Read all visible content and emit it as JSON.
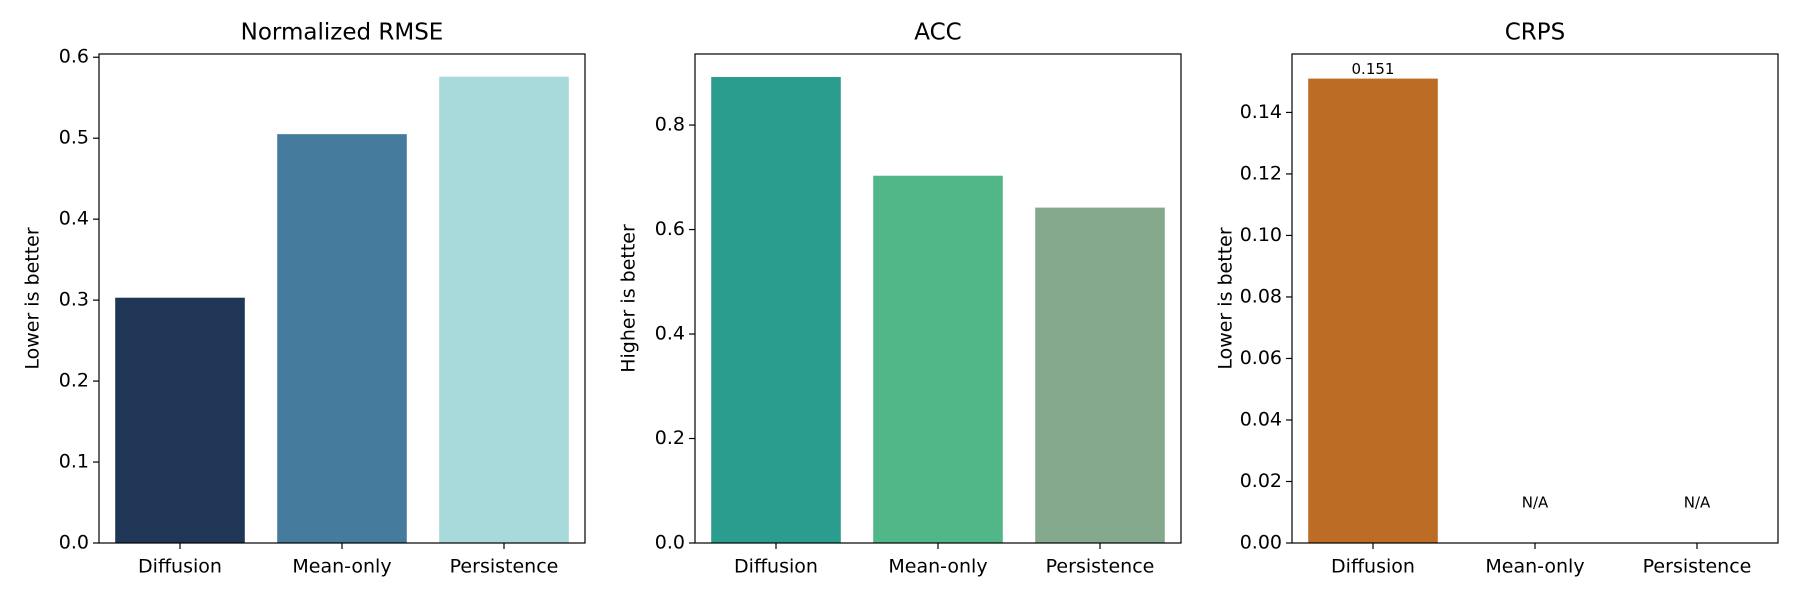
{
  "chart_data": [
    {
      "type": "bar",
      "title": "Normalized RMSE",
      "ylabel": "Lower is better",
      "categories": [
        "Diffusion",
        "Mean-only",
        "Persistence"
      ],
      "values": [
        0.303,
        0.505,
        0.576
      ],
      "colors": [
        "#1f3657",
        "#457b9d",
        "#a8dadc"
      ],
      "ylim": [
        0,
        0.604
      ],
      "yticks": [
        {
          "value": 0,
          "label": "0.0"
        },
        0.1,
        0.2,
        0.3,
        0.4,
        0.5,
        0.6
      ]
    },
    {
      "type": "bar",
      "title": "ACC",
      "ylabel": "Higher is better",
      "categories": [
        "Diffusion",
        "Mean-only",
        "Persistence"
      ],
      "values": [
        0.892,
        0.703,
        0.642
      ],
      "colors": [
        "#2a9d8f",
        "#52b788",
        "#84a98c"
      ],
      "ylim": [
        0,
        0.936
      ],
      "yticks": [
        {
          "value": 0,
          "label": "0.0"
        },
        0.2,
        0.4,
        0.6,
        0.8
      ]
    },
    {
      "type": "bar",
      "title": "CRPS",
      "ylabel": "Lower is better",
      "categories": [
        "Diffusion",
        "Mean-only",
        "Persistence"
      ],
      "values": [
        0.151,
        null,
        null
      ],
      "value_labels": [
        "0.151",
        "N/A",
        "N/A"
      ],
      "colors": [
        "#bc6c25",
        "#bc6c25",
        "#bc6c25"
      ],
      "ylim": [
        0,
        0.159
      ],
      "yticks": [
        {
          "value": 0,
          "label": "0.00"
        },
        0.02,
        0.04,
        0.06,
        0.08,
        {
          "value": 0.1,
          "label": "0.10"
        },
        0.12,
        0.14
      ]
    }
  ]
}
